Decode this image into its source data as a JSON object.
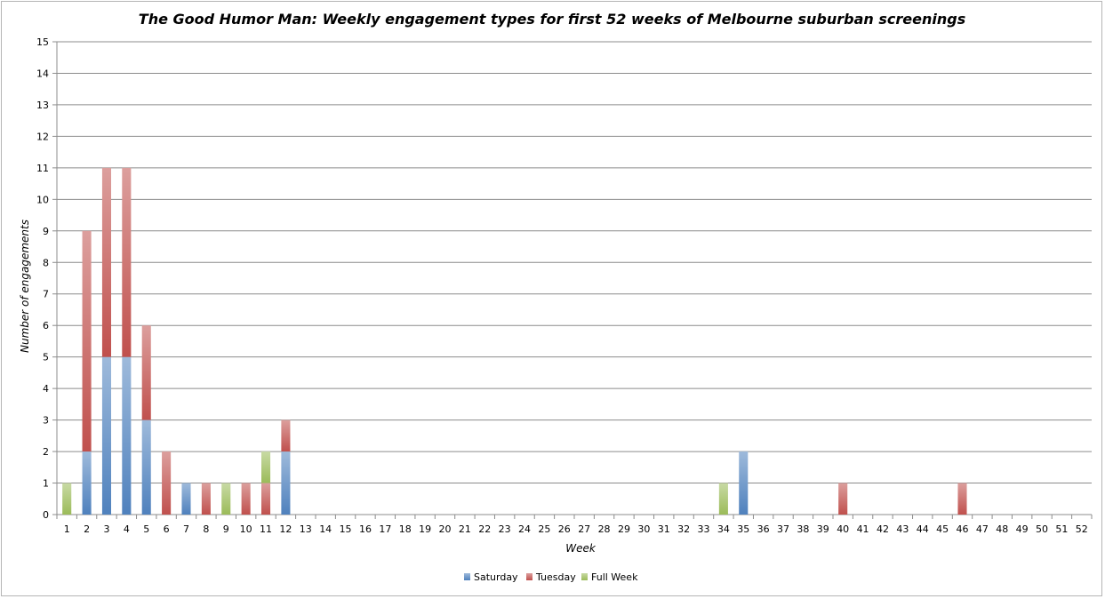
{
  "chart_data": {
    "type": "bar",
    "stacked": true,
    "title": "The Good Humor Man: Weekly engagement types for first 52 weeks of Melbourne suburban screenings",
    "xlabel": "Week",
    "ylabel": "Number of engagements",
    "ylim": [
      0,
      15
    ],
    "yticks": [
      0,
      1,
      2,
      3,
      4,
      5,
      6,
      7,
      8,
      9,
      10,
      11,
      12,
      13,
      14,
      15
    ],
    "grid": true,
    "legend_position": "bottom",
    "categories": [
      "1",
      "2",
      "3",
      "4",
      "5",
      "6",
      "7",
      "8",
      "9",
      "10",
      "11",
      "12",
      "13",
      "14",
      "15",
      "16",
      "17",
      "18",
      "19",
      "20",
      "21",
      "22",
      "23",
      "24",
      "25",
      "26",
      "27",
      "28",
      "29",
      "30",
      "31",
      "32",
      "33",
      "34",
      "35",
      "36",
      "37",
      "38",
      "39",
      "40",
      "41",
      "42",
      "43",
      "44",
      "45",
      "46",
      "47",
      "48",
      "49",
      "50",
      "51",
      "52"
    ],
    "series": [
      {
        "name": "Saturday",
        "color": "#4f81bd",
        "values": [
          0,
          2,
          5,
          5,
          3,
          0,
          1,
          0,
          0,
          0,
          0,
          2,
          0,
          0,
          0,
          0,
          0,
          0,
          0,
          0,
          0,
          0,
          0,
          0,
          0,
          0,
          0,
          0,
          0,
          0,
          0,
          0,
          0,
          0,
          2,
          0,
          0,
          0,
          0,
          0,
          0,
          0,
          0,
          0,
          0,
          0,
          0,
          0,
          0,
          0,
          0,
          0
        ]
      },
      {
        "name": "Tuesday",
        "color": "#c0504d",
        "values": [
          0,
          7,
          6,
          6,
          3,
          2,
          0,
          1,
          0,
          1,
          1,
          1,
          0,
          0,
          0,
          0,
          0,
          0,
          0,
          0,
          0,
          0,
          0,
          0,
          0,
          0,
          0,
          0,
          0,
          0,
          0,
          0,
          0,
          0,
          0,
          0,
          0,
          0,
          0,
          1,
          0,
          0,
          0,
          0,
          0,
          1,
          0,
          0,
          0,
          0,
          0,
          0
        ]
      },
      {
        "name": "Full Week",
        "color": "#9bbb59",
        "values": [
          1,
          0,
          0,
          0,
          0,
          0,
          0,
          0,
          1,
          0,
          1,
          0,
          0,
          0,
          0,
          0,
          0,
          0,
          0,
          0,
          0,
          0,
          0,
          0,
          0,
          0,
          0,
          0,
          0,
          0,
          0,
          0,
          0,
          1,
          0,
          0,
          0,
          0,
          0,
          0,
          0,
          0,
          0,
          0,
          0,
          0,
          0,
          0,
          0,
          0,
          0,
          0
        ]
      }
    ]
  }
}
